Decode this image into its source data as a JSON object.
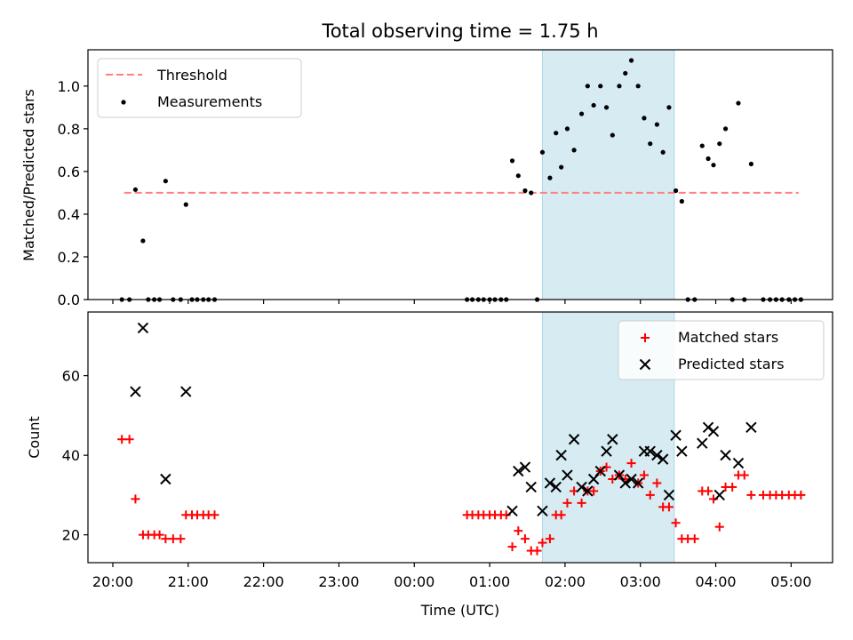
{
  "chart_data": [
    {
      "type": "scatter",
      "title": "Total observing time = 1.75 h",
      "xlabel": "",
      "ylabel": "Matched/Predicted stars",
      "x_unit": "hours after 20:00 UTC",
      "xlim": [
        -0.33,
        9.55
      ],
      "ylim": [
        0,
        1.17
      ],
      "yticks": [
        0.0,
        0.2,
        0.4,
        0.6,
        0.8,
        1.0
      ],
      "ytick_labels": [
        "0.0",
        "0.2",
        "0.4",
        "0.6",
        "0.8",
        "1.0"
      ],
      "highlight_span": [
        5.7,
        7.45
      ],
      "threshold": {
        "name": "Threshold",
        "value": 0.5,
        "x_range": [
          0.15,
          9.1
        ],
        "color": "#ff7f7f"
      },
      "series": [
        {
          "name": "Measurements",
          "color": "#000000",
          "points": [
            [
              0.12,
              0
            ],
            [
              0.22,
              0
            ],
            [
              0.3,
              0.515
            ],
            [
              0.4,
              0.275
            ],
            [
              0.47,
              0
            ],
            [
              0.55,
              0
            ],
            [
              0.62,
              0
            ],
            [
              0.7,
              0.555
            ],
            [
              0.8,
              0
            ],
            [
              0.9,
              0
            ],
            [
              0.97,
              0.445
            ],
            [
              1.05,
              0
            ],
            [
              1.12,
              0
            ],
            [
              1.2,
              0
            ],
            [
              1.27,
              0
            ],
            [
              1.35,
              0
            ],
            [
              4.7,
              0
            ],
            [
              4.77,
              0
            ],
            [
              4.85,
              0
            ],
            [
              4.92,
              0
            ],
            [
              5.0,
              0
            ],
            [
              5.07,
              0
            ],
            [
              5.15,
              0
            ],
            [
              5.22,
              0
            ],
            [
              5.3,
              0.65
            ],
            [
              5.38,
              0.58
            ],
            [
              5.47,
              0.51
            ],
            [
              5.55,
              0.5
            ],
            [
              5.63,
              0
            ],
            [
              5.7,
              0.69
            ],
            [
              5.8,
              0.57
            ],
            [
              5.88,
              0.78
            ],
            [
              5.95,
              0.62
            ],
            [
              6.03,
              0.8
            ],
            [
              6.12,
              0.7
            ],
            [
              6.22,
              0.87
            ],
            [
              6.3,
              1.0
            ],
            [
              6.38,
              0.91
            ],
            [
              6.47,
              1.0
            ],
            [
              6.55,
              0.9
            ],
            [
              6.63,
              0.77
            ],
            [
              6.72,
              1.0
            ],
            [
              6.8,
              1.06
            ],
            [
              6.88,
              1.12
            ],
            [
              6.97,
              1.0
            ],
            [
              7.05,
              0.85
            ],
            [
              7.13,
              0.73
            ],
            [
              7.22,
              0.82
            ],
            [
              7.3,
              0.69
            ],
            [
              7.38,
              0.9
            ],
            [
              7.47,
              0.51
            ],
            [
              7.55,
              0.46
            ],
            [
              7.63,
              0
            ],
            [
              7.72,
              0
            ],
            [
              7.82,
              0.72
            ],
            [
              7.9,
              0.66
            ],
            [
              7.97,
              0.63
            ],
            [
              8.05,
              0.73
            ],
            [
              8.13,
              0.8
            ],
            [
              8.22,
              0
            ],
            [
              8.3,
              0.92
            ],
            [
              8.38,
              0
            ],
            [
              8.47,
              0.635
            ],
            [
              8.63,
              0
            ],
            [
              8.72,
              0
            ],
            [
              8.8,
              0
            ],
            [
              8.88,
              0
            ],
            [
              8.97,
              0
            ],
            [
              9.05,
              0
            ],
            [
              9.13,
              0
            ]
          ]
        }
      ],
      "legend": {
        "placement": "upper-left",
        "items": [
          "Threshold",
          "Measurements"
        ]
      }
    },
    {
      "type": "scatter",
      "title": "",
      "xlabel": "Time (UTC)",
      "ylabel": "Count",
      "x_unit": "hours after 20:00 UTC",
      "xlim": [
        -0.33,
        9.55
      ],
      "ylim": [
        13,
        76
      ],
      "yticks": [
        20,
        40,
        60
      ],
      "ytick_labels": [
        "20",
        "40",
        "60"
      ],
      "xticks": [
        0,
        1,
        2,
        3,
        4,
        5,
        6,
        7,
        8,
        9
      ],
      "xtick_labels": [
        "20:00",
        "21:00",
        "22:00",
        "23:00",
        "00:00",
        "01:00",
        "02:00",
        "03:00",
        "04:00",
        "05:00"
      ],
      "highlight_span": [
        5.7,
        7.45
      ],
      "series": [
        {
          "name": "Matched stars",
          "marker": "plus",
          "color": "#ff0000",
          "points": [
            [
              0.12,
              44
            ],
            [
              0.22,
              44
            ],
            [
              0.3,
              29
            ],
            [
              0.4,
              20
            ],
            [
              0.47,
              20
            ],
            [
              0.55,
              20
            ],
            [
              0.62,
              20
            ],
            [
              0.7,
              19
            ],
            [
              0.8,
              19
            ],
            [
              0.9,
              19
            ],
            [
              0.97,
              25
            ],
            [
              1.05,
              25
            ],
            [
              1.12,
              25
            ],
            [
              1.2,
              25
            ],
            [
              1.27,
              25
            ],
            [
              1.35,
              25
            ],
            [
              4.7,
              25
            ],
            [
              4.77,
              25
            ],
            [
              4.85,
              25
            ],
            [
              4.92,
              25
            ],
            [
              5.0,
              25
            ],
            [
              5.07,
              25
            ],
            [
              5.15,
              25
            ],
            [
              5.22,
              25
            ],
            [
              5.3,
              17
            ],
            [
              5.38,
              21
            ],
            [
              5.47,
              19
            ],
            [
              5.55,
              16
            ],
            [
              5.63,
              16
            ],
            [
              5.7,
              18
            ],
            [
              5.8,
              19
            ],
            [
              5.88,
              25
            ],
            [
              5.95,
              25
            ],
            [
              6.03,
              28
            ],
            [
              6.12,
              31
            ],
            [
              6.22,
              28
            ],
            [
              6.3,
              31
            ],
            [
              6.38,
              31
            ],
            [
              6.47,
              36
            ],
            [
              6.55,
              37
            ],
            [
              6.63,
              34
            ],
            [
              6.72,
              35
            ],
            [
              6.8,
              34
            ],
            [
              6.88,
              38
            ],
            [
              6.97,
              33
            ],
            [
              7.05,
              35
            ],
            [
              7.13,
              30
            ],
            [
              7.22,
              33
            ],
            [
              7.3,
              27
            ],
            [
              7.38,
              27
            ],
            [
              7.47,
              23
            ],
            [
              7.55,
              19
            ],
            [
              7.63,
              19
            ],
            [
              7.72,
              19
            ],
            [
              7.82,
              31
            ],
            [
              7.9,
              31
            ],
            [
              7.97,
              29
            ],
            [
              8.05,
              22
            ],
            [
              8.13,
              32
            ],
            [
              8.22,
              32
            ],
            [
              8.3,
              35
            ],
            [
              8.38,
              35
            ],
            [
              8.47,
              30
            ],
            [
              8.63,
              30
            ],
            [
              8.72,
              30
            ],
            [
              8.8,
              30
            ],
            [
              8.88,
              30
            ],
            [
              8.97,
              30
            ],
            [
              9.05,
              30
            ],
            [
              9.13,
              30
            ]
          ]
        },
        {
          "name": "Predicted stars",
          "marker": "x",
          "color": "#000000",
          "points": [
            [
              0.3,
              56
            ],
            [
              0.4,
              72
            ],
            [
              0.7,
              34
            ],
            [
              0.97,
              56
            ],
            [
              5.3,
              26
            ],
            [
              5.38,
              36
            ],
            [
              5.47,
              37
            ],
            [
              5.55,
              32
            ],
            [
              5.7,
              26
            ],
            [
              5.8,
              33
            ],
            [
              5.88,
              32
            ],
            [
              5.95,
              40
            ],
            [
              6.03,
              35
            ],
            [
              6.12,
              44
            ],
            [
              6.22,
              32
            ],
            [
              6.3,
              31
            ],
            [
              6.38,
              34
            ],
            [
              6.47,
              36
            ],
            [
              6.55,
              41
            ],
            [
              6.63,
              44
            ],
            [
              6.72,
              35
            ],
            [
              6.8,
              33
            ],
            [
              6.88,
              34
            ],
            [
              6.97,
              33
            ],
            [
              7.05,
              41
            ],
            [
              7.13,
              41
            ],
            [
              7.22,
              40
            ],
            [
              7.3,
              39
            ],
            [
              7.38,
              30
            ],
            [
              7.47,
              45
            ],
            [
              7.55,
              41
            ],
            [
              7.82,
              43
            ],
            [
              7.9,
              47
            ],
            [
              7.97,
              46
            ],
            [
              8.05,
              30
            ],
            [
              8.13,
              40
            ],
            [
              8.3,
              38
            ],
            [
              8.47,
              47
            ]
          ]
        }
      ],
      "legend": {
        "placement": "upper-right",
        "items": [
          "Matched stars",
          "Predicted stars"
        ]
      }
    }
  ]
}
